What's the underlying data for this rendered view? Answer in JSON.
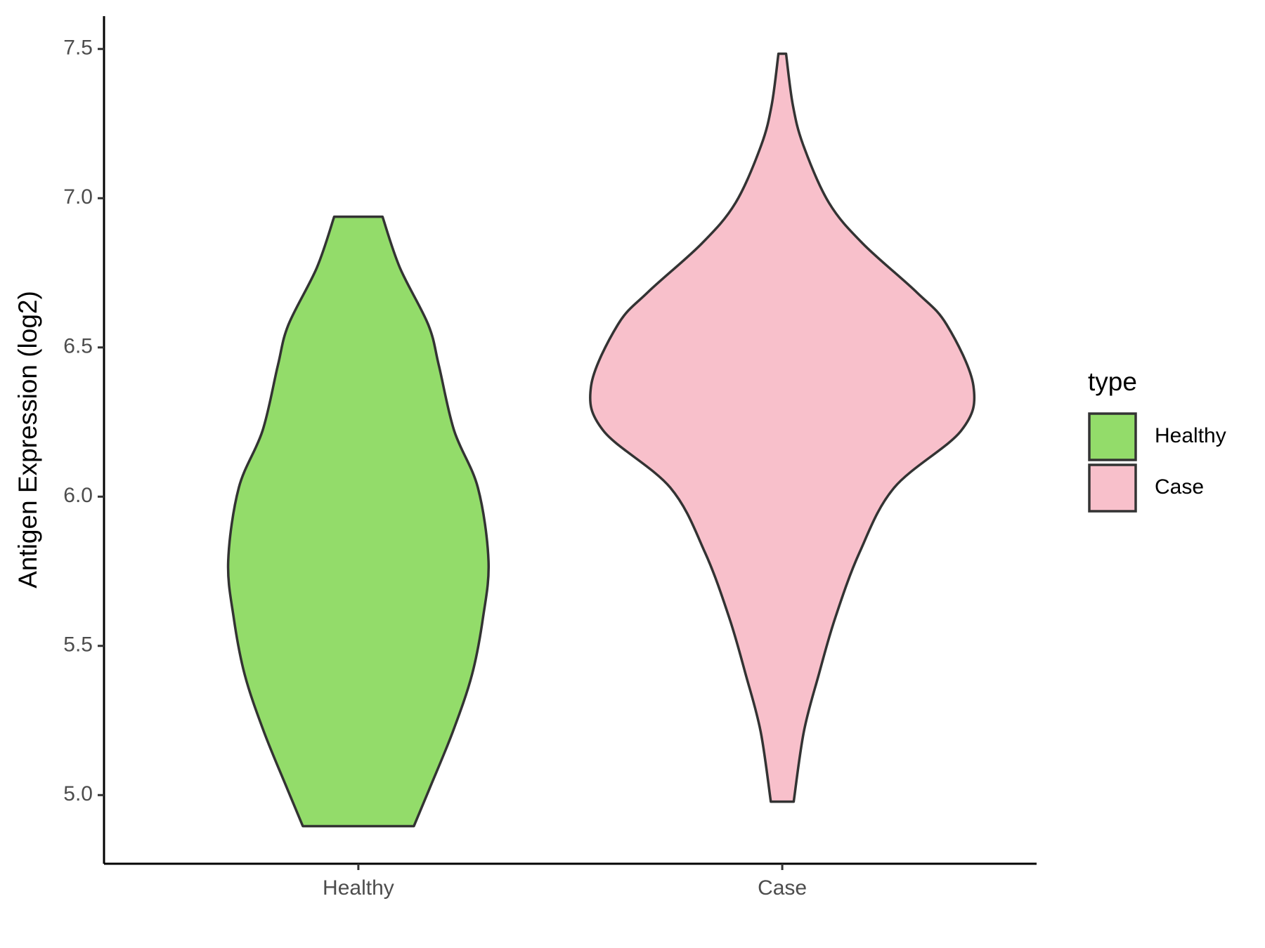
{
  "chart_data": {
    "type": "violin",
    "y_label": "Antigen Expression (log2)",
    "legend_title": "type",
    "categories": [
      "Healthy",
      "Case"
    ],
    "series": [
      {
        "name": "Healthy",
        "color": "#93dc6a",
        "y": [
          6.938,
          6.767,
          6.576,
          6.439,
          6.221,
          6.03,
          5.785,
          5.594,
          5.403,
          5.213,
          5.022,
          4.896
        ],
        "half_width": [
          0.057,
          0.098,
          0.165,
          0.19,
          0.226,
          0.282,
          0.307,
          0.294,
          0.268,
          0.223,
          0.168,
          0.131
        ]
      },
      {
        "name": "Case",
        "color": "#f8c0cb",
        "y": [
          7.484,
          7.312,
          7.176,
          6.985,
          6.848,
          6.685,
          6.576,
          6.371,
          6.221,
          6.03,
          5.812,
          5.594,
          5.403,
          5.213,
          4.978
        ],
        "half_width": [
          0.009,
          0.025,
          0.05,
          0.11,
          0.19,
          0.317,
          0.388,
          0.451,
          0.422,
          0.264,
          0.182,
          0.125,
          0.086,
          0.051,
          0.027
        ]
      }
    ],
    "ylim": [
      4.77,
      7.61
    ],
    "yticks": [
      {
        "value": 5,
        "label": "5.0"
      },
      5.5,
      {
        "value": 6,
        "label": "6.0"
      },
      6.5,
      {
        "value": 7,
        "label": "7.0"
      },
      7.5
    ]
  }
}
